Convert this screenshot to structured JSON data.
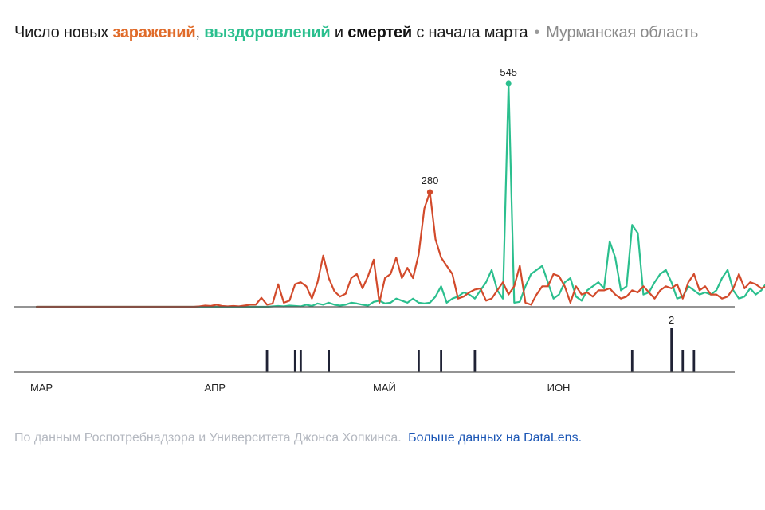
{
  "title": {
    "prefix": "Число новых ",
    "infections": "заражений",
    "sep1": ", ",
    "recoveries": "выздоровлений",
    "sep2": " и ",
    "deaths": "смертей",
    "suffix": " с начала марта",
    "dot": "•",
    "region": "Мурманская область"
  },
  "footer": {
    "source": "По данным Роспотребнадзора и Университета Джонса Хопкинса.",
    "link": "Больше данных на DataLens."
  },
  "colors": {
    "infections": "#d24a2b",
    "recoveries": "#2bbf8e",
    "deaths": "#1f2235",
    "axis": "#555555"
  },
  "chart_data": {
    "type": "line",
    "x_start_date": "2020-03-01",
    "x_tick_labels": [
      {
        "label": "МАР",
        "day": 0
      },
      {
        "label": "АПР",
        "day": 31
      },
      {
        "label": "МАЙ",
        "day": 61
      },
      {
        "label": "ИОН",
        "day": 92
      }
    ],
    "ylim_top": [
      0,
      545
    ],
    "ylim_deaths": [
      0,
      2
    ],
    "series": [
      {
        "name": "заражений",
        "values": [
          0,
          0,
          0,
          0,
          0,
          0,
          0,
          0,
          0,
          0,
          0,
          0,
          0,
          0,
          0,
          0,
          0,
          0,
          0,
          0,
          0,
          0,
          0,
          0,
          0,
          0,
          0,
          0,
          0,
          1,
          3,
          2,
          5,
          2,
          1,
          2,
          1,
          3,
          5,
          5,
          22,
          5,
          8,
          55,
          10,
          15,
          55,
          60,
          50,
          20,
          60,
          125,
          70,
          38,
          25,
          32,
          70,
          80,
          45,
          75,
          115,
          10,
          70,
          80,
          120,
          70,
          95,
          70,
          128,
          240,
          280,
          165,
          120,
          100,
          80,
          20,
          25,
          35,
          42,
          45,
          15,
          20,
          40,
          60,
          30,
          50,
          100,
          10,
          5,
          30,
          50,
          50,
          80,
          75,
          50,
          10,
          50,
          30,
          35,
          25,
          40,
          40,
          45,
          30,
          20,
          25,
          40,
          35,
          50,
          35,
          20,
          40,
          50,
          45,
          55,
          20,
          60,
          80,
          40,
          50,
          30,
          30,
          20,
          25,
          45,
          80,
          45,
          60,
          55,
          45,
          50,
          50,
          55,
          45,
          20,
          25,
          45,
          40,
          55,
          40,
          20,
          25,
          50,
          45,
          25,
          40,
          45,
          60,
          70,
          80,
          90,
          100
        ],
        "peak_label": "280"
      },
      {
        "name": "выздоровлений",
        "values": [
          0,
          0,
          0,
          0,
          0,
          0,
          0,
          0,
          0,
          0,
          0,
          0,
          0,
          0,
          0,
          0,
          0,
          0,
          0,
          0,
          0,
          0,
          0,
          0,
          0,
          0,
          0,
          0,
          0,
          0,
          0,
          0,
          0,
          0,
          0,
          0,
          0,
          0,
          0,
          0,
          0,
          0,
          1,
          2,
          1,
          3,
          2,
          1,
          5,
          2,
          8,
          5,
          10,
          5,
          3,
          5,
          10,
          8,
          5,
          3,
          12,
          15,
          8,
          10,
          20,
          15,
          10,
          20,
          10,
          8,
          10,
          25,
          50,
          10,
          20,
          25,
          35,
          30,
          20,
          40,
          60,
          90,
          40,
          20,
          545,
          10,
          12,
          50,
          80,
          90,
          100,
          60,
          20,
          30,
          60,
          70,
          25,
          15,
          40,
          50,
          60,
          45,
          160,
          120,
          40,
          50,
          200,
          180,
          30,
          35,
          60,
          80,
          90,
          60,
          20,
          25,
          50,
          40,
          30,
          35,
          30,
          40,
          70,
          90,
          40,
          20,
          25,
          45,
          30,
          40,
          60,
          80,
          90,
          120,
          70,
          30,
          40,
          50,
          100,
          120,
          60,
          30,
          20,
          30,
          40,
          80,
          140,
          100,
          60,
          40,
          20,
          10
        ],
        "peak_label": "545"
      },
      {
        "name": "смертей",
        "days": [
          41,
          46,
          47,
          52,
          68,
          72,
          78,
          106,
          113,
          115,
          117
        ],
        "values": [
          1,
          1,
          1,
          1,
          1,
          1,
          1,
          1,
          2,
          1,
          1
        ],
        "peak_label": "2"
      }
    ]
  }
}
